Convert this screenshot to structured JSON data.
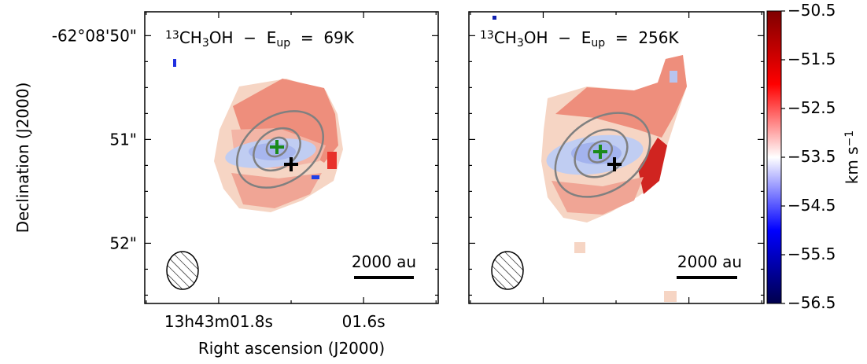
{
  "chart_data": [
    {
      "type": "velocity-map",
      "title": [
        {
          "text": "13",
          "style": "sup"
        },
        {
          "text": "CH",
          "style": "normal"
        },
        {
          "text": "3",
          "style": "sub"
        },
        {
          "text": "OH  −  E",
          "style": "normal"
        },
        {
          "text": "up",
          "style": "sub"
        },
        {
          "text": "  =  69K",
          "style": "normal"
        }
      ],
      "xlabel": "Right ascension (J2000)",
      "ylabel": "Declination (J2000)",
      "xlim": [
        1.902,
        1.497
      ],
      "ylim": [
        49.77,
        52.58
      ],
      "xticks": [
        {
          "value": 1.8,
          "label": "13h43m01.8s"
        },
        {
          "value": 1.6,
          "label": "01.6s"
        }
      ],
      "yticks": [
        {
          "value": 50,
          "label": "-62°08'50\""
        },
        {
          "value": 51,
          "label": "51\""
        },
        {
          "value": 52,
          "label": "52\""
        }
      ],
      "tick_labels": true,
      "scalebar": "2000 au"
    },
    {
      "type": "velocity-map",
      "title": [
        {
          "text": "13",
          "style": "sup"
        },
        {
          "text": "CH",
          "style": "normal"
        },
        {
          "text": "3",
          "style": "sub"
        },
        {
          "text": "OH  −  E",
          "style": "normal"
        },
        {
          "text": "up",
          "style": "sub"
        },
        {
          "text": "  =  256K",
          "style": "normal"
        }
      ],
      "xlim": [
        1.902,
        1.497
      ],
      "ylim": [
        49.77,
        52.58
      ],
      "xticks": [
        1.8,
        1.6
      ],
      "yticks": [
        50,
        51,
        52
      ],
      "tick_labels": false,
      "scalebar": "2000 au"
    },
    {
      "type": "colorbar",
      "label": [
        {
          "text": "km s",
          "style": "normal"
        },
        {
          "text": "−1",
          "style": "sup"
        }
      ],
      "clim": [
        -56.5,
        -50.5
      ],
      "ticks": [
        {
          "value": -50.5,
          "label": "−50.5"
        },
        {
          "value": -51.5,
          "label": "−51.5"
        },
        {
          "value": -52.5,
          "label": "−52.5"
        },
        {
          "value": -53.5,
          "label": "−53.5"
        },
        {
          "value": -54.5,
          "label": "−54.5"
        },
        {
          "value": -55.5,
          "label": "−55.5"
        },
        {
          "value": -56.5,
          "label": "−56.5"
        }
      ],
      "colormap": [
        "#00004c",
        "#0000ff",
        "#ffffff",
        "#ff0000",
        "#7f0000"
      ]
    }
  ]
}
